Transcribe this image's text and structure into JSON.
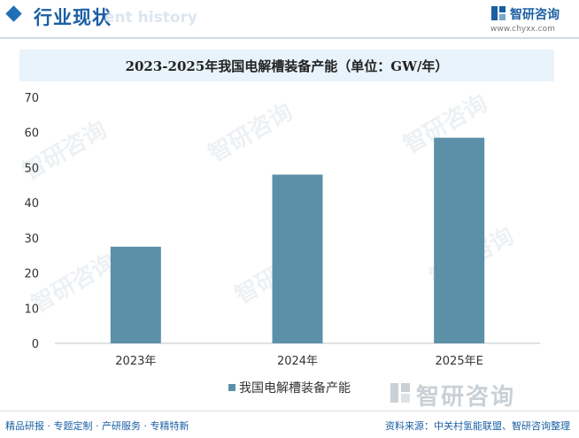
{
  "header": {
    "title": "行业现状",
    "subtitle": "ent history",
    "brand_name": "智研咨询",
    "brand_url": "www.chyxx.com"
  },
  "watermark": {
    "text": "智研咨询"
  },
  "chart_data": {
    "type": "bar",
    "title": "2023-2025年我国电解槽装备产能（单位：GW/年）",
    "categories": [
      "2023年",
      "2024年",
      "2025年E"
    ],
    "series": [
      {
        "name": "我国电解槽装备产能",
        "values": [
          27.5,
          48,
          58.5
        ],
        "color": "#5b90a8"
      }
    ],
    "ylim": [
      0,
      70
    ],
    "yticks": [
      0,
      10,
      20,
      30,
      40,
      50,
      60,
      70
    ],
    "xlabel": "",
    "ylabel": "",
    "grid": false,
    "legend": "bottom"
  },
  "footer": {
    "left": "精品研报 · 专题定制 · 产研服务 · 专精特新",
    "right": "资料来源：中关村氢能联盟、智研咨询整理"
  }
}
